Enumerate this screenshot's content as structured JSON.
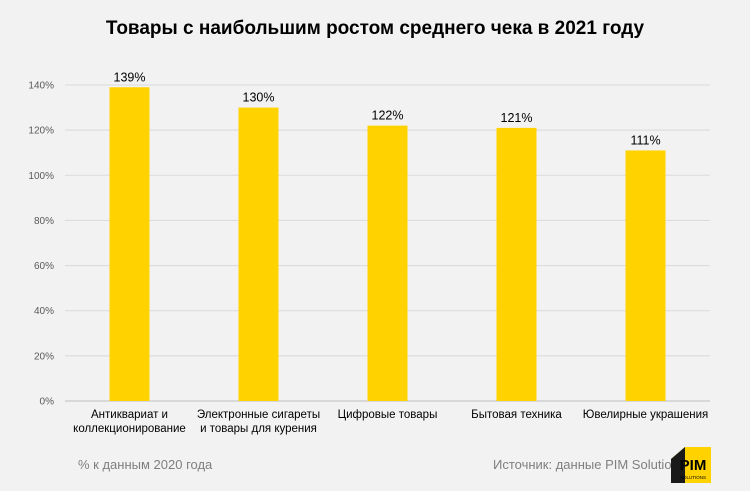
{
  "chart_data": {
    "type": "bar",
    "title": "Товары с наибольшим ростом среднего чека в 2021 году",
    "categories": [
      [
        "Антиквариат и",
        "коллекционирование"
      ],
      [
        "Электронные сигареты",
        "и товары для курения"
      ],
      [
        "Цифровые товары"
      ],
      [
        "Бытовая техника"
      ],
      [
        "Ювелирные украшения"
      ]
    ],
    "values": [
      139,
      130,
      122,
      121,
      111
    ],
    "data_labels": [
      "139%",
      "130%",
      "122%",
      "121%",
      "111%"
    ],
    "y_ticks": [
      "0%",
      "20%",
      "40%",
      "60%",
      "80%",
      "100%",
      "120%",
      "140%"
    ],
    "ylim": [
      0,
      140
    ],
    "grid": true,
    "legend": "none",
    "bar_color": "#ffd200"
  },
  "footnote_left": "% к данным 2020 года",
  "footnote_right": "Источник: данные PIM Solutions",
  "logo": {
    "text": "PIM",
    "subtext": "SOLUTIONS",
    "icon": "pim-solutions-logo"
  }
}
